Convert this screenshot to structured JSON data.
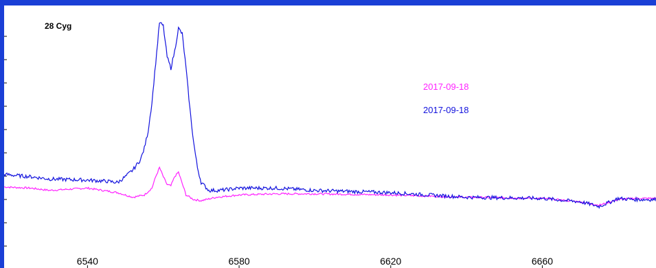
{
  "chart_data": {
    "type": "line",
    "title": "28 Cyg",
    "xlabel": "",
    "ylabel": "",
    "xlim": [
      6518,
      6690
    ],
    "ylim": [
      0.6,
      2.9
    ],
    "x_ticks": [
      6540,
      6580,
      6620,
      6660
    ],
    "grid": false,
    "legend_placement": "right-center",
    "series": [
      {
        "name": "2017-09-18",
        "color": "#ff22ff",
        "x": [
          6518,
          6525,
          6530,
          6540,
          6548,
          6552,
          6555,
          6557,
          6558,
          6559,
          6560,
          6561,
          6562,
          6563,
          6564,
          6565,
          6566,
          6568,
          6570,
          6574,
          6580,
          6590,
          6600,
          6620,
          6640,
          6660,
          6670,
          6675,
          6678,
          6680,
          6684,
          6690
        ],
        "values": [
          1.31,
          1.3,
          1.28,
          1.3,
          1.26,
          1.22,
          1.24,
          1.3,
          1.4,
          1.48,
          1.4,
          1.33,
          1.32,
          1.4,
          1.44,
          1.34,
          1.24,
          1.2,
          1.19,
          1.22,
          1.24,
          1.25,
          1.25,
          1.24,
          1.22,
          1.21,
          1.18,
          1.15,
          1.18,
          1.2,
          1.21,
          1.21
        ]
      },
      {
        "name": "2017-09-18",
        "color": "#1111dd",
        "x": [
          6518,
          6525,
          6530,
          6540,
          6545,
          6548,
          6550,
          6552,
          6554,
          6555,
          6556,
          6557,
          6558,
          6559,
          6560,
          6561,
          6562,
          6563,
          6564,
          6565,
          6566,
          6567,
          6568,
          6569,
          6570,
          6572,
          6575,
          6580,
          6590,
          6600,
          6620,
          6640,
          6660,
          6670,
          6675,
          6678,
          6680,
          6684,
          6690
        ],
        "values": [
          1.42,
          1.4,
          1.38,
          1.37,
          1.36,
          1.35,
          1.4,
          1.46,
          1.55,
          1.65,
          1.8,
          2.05,
          2.4,
          2.75,
          2.72,
          2.45,
          2.35,
          2.5,
          2.7,
          2.65,
          2.35,
          2.0,
          1.7,
          1.48,
          1.35,
          1.28,
          1.28,
          1.3,
          1.3,
          1.28,
          1.26,
          1.22,
          1.21,
          1.18,
          1.14,
          1.18,
          1.21,
          1.2,
          1.2
        ]
      }
    ]
  }
}
